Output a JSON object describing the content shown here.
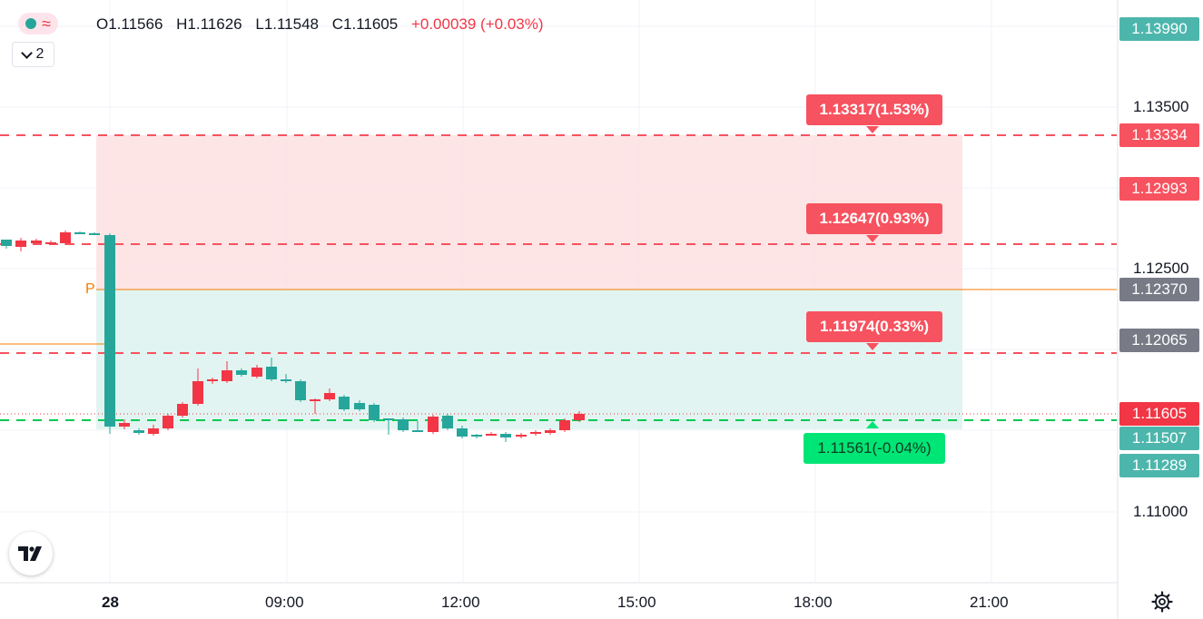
{
  "legend": {
    "open": "O1.11566",
    "high": "H1.11626",
    "low": "L1.11548",
    "close": "C1.11605",
    "change": "+0.00039 (+0.03%)",
    "indicator_count": "2"
  },
  "price_axis": {
    "ticks": [
      "1.13500",
      "1.12500",
      "1.11000"
    ],
    "labels": [
      {
        "text": "1.13990",
        "color": "#4db6ac"
      },
      {
        "text": "1.13334",
        "color": "#f7525f"
      },
      {
        "text": "1.12993",
        "color": "#f7525f"
      },
      {
        "text": "1.12370",
        "color": "#787b86"
      },
      {
        "text": "1.12065",
        "color": "#787b86"
      },
      {
        "text": "1.11605",
        "color": "#f23645"
      },
      {
        "text": "1.11507",
        "color": "#4db6ac"
      },
      {
        "text": "1.11289",
        "color": "#4db6ac"
      }
    ]
  },
  "time_axis": {
    "ticks": [
      "28",
      "09:00",
      "12:00",
      "15:00",
      "18:00",
      "21:00"
    ]
  },
  "targets": [
    {
      "text": "1.13317(1.53%)",
      "color": "#f7525f"
    },
    {
      "text": "1.12647(0.93%)",
      "color": "#f7525f"
    },
    {
      "text": "1.11974(0.33%)",
      "color": "#f7525f"
    },
    {
      "text": "1.11561(-0.04%)",
      "color": "#00e676"
    }
  ],
  "position_marker": "P",
  "colors": {
    "up": "#26a69a",
    "down": "#f23645",
    "target_line": "#f7525f",
    "entry_line": "#00c853",
    "position_line": "#f57c00",
    "loss_zone": "#fde0e2",
    "profit_zone": "#dff3ef"
  },
  "icons": {
    "logo": "tradingview-logo-icon",
    "settings": "gear-icon"
  }
}
